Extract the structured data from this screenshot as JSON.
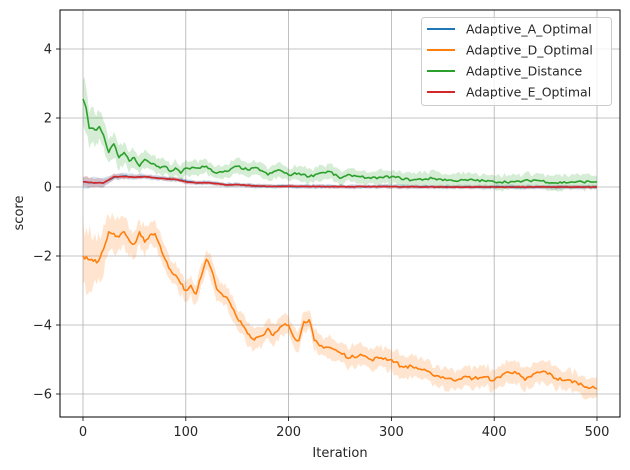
{
  "chart_data": {
    "type": "line",
    "title": "",
    "xlabel": "Iteration",
    "ylabel": "score",
    "xlim": [
      -25,
      525
    ],
    "ylim": [
      -6.65,
      5.1
    ],
    "xticks": [
      0,
      100,
      200,
      300,
      400,
      500
    ],
    "xtick_labels": [
      "0",
      "100",
      "200",
      "300",
      "400",
      "500"
    ],
    "yticks": [
      -6,
      -4,
      -2,
      0,
      2,
      4
    ],
    "ytick_labels": [
      "−6",
      "−4",
      "−2",
      "0",
      "2",
      "4"
    ],
    "grid": true,
    "legend_position": "upper right",
    "legend": [
      "Adaptive_A_Optimal",
      "Adaptive_D_Optimal",
      "Adaptive_Distance",
      "Adaptive_E_Optimal"
    ],
    "series": [
      {
        "name": "Adaptive_A_Optimal",
        "color": "#1f77b4",
        "x": [
          0,
          10,
          20,
          30,
          40,
          50,
          60,
          70,
          80,
          90,
          100,
          110,
          120,
          130,
          140,
          150,
          160,
          170,
          180,
          200,
          250,
          300,
          350,
          400,
          450,
          500
        ],
        "values": [
          0.15,
          0.12,
          0.12,
          0.28,
          0.32,
          0.28,
          0.3,
          0.27,
          0.24,
          0.22,
          0.17,
          0.12,
          0.13,
          0.1,
          0.06,
          0.07,
          0.05,
          0.03,
          0.02,
          0.02,
          0.01,
          0.01,
          0.0,
          0.0,
          0.0,
          0.0
        ],
        "band": 0.06
      },
      {
        "name": "Adaptive_D_Optimal",
        "color": "#ff7f0e",
        "x": [
          0,
          5,
          10,
          15,
          20,
          25,
          30,
          35,
          40,
          45,
          50,
          55,
          60,
          65,
          70,
          75,
          80,
          85,
          90,
          95,
          100,
          105,
          110,
          115,
          120,
          125,
          130,
          135,
          140,
          145,
          150,
          155,
          160,
          165,
          170,
          175,
          180,
          185,
          190,
          195,
          200,
          205,
          210,
          215,
          220,
          225,
          230,
          240,
          250,
          260,
          270,
          280,
          290,
          300,
          310,
          320,
          330,
          340,
          350,
          360,
          370,
          380,
          390,
          400,
          410,
          420,
          430,
          440,
          450,
          460,
          470,
          480,
          490,
          500
        ],
        "values": [
          -2.0,
          -2.1,
          -2.15,
          -2.15,
          -1.8,
          -1.3,
          -1.35,
          -1.45,
          -1.3,
          -1.55,
          -1.65,
          -1.3,
          -1.6,
          -1.4,
          -1.35,
          -1.7,
          -2.1,
          -2.4,
          -2.55,
          -2.8,
          -3.0,
          -2.85,
          -3.1,
          -2.6,
          -2.1,
          -2.4,
          -2.95,
          -3.1,
          -3.2,
          -3.5,
          -3.8,
          -4.0,
          -4.25,
          -4.4,
          -4.35,
          -4.3,
          -4.1,
          -4.3,
          -4.15,
          -4.0,
          -4.0,
          -4.35,
          -4.45,
          -3.9,
          -3.85,
          -4.45,
          -4.6,
          -4.65,
          -4.8,
          -4.95,
          -4.85,
          -5.0,
          -4.95,
          -5.0,
          -5.2,
          -5.2,
          -5.3,
          -5.45,
          -5.5,
          -5.6,
          -5.5,
          -5.55,
          -5.5,
          -5.6,
          -5.4,
          -5.35,
          -5.6,
          -5.4,
          -5.35,
          -5.55,
          -5.6,
          -5.65,
          -5.8,
          -5.85
        ],
        "band": 0.3
      },
      {
        "name": "Adaptive_Distance",
        "color": "#2ca02c",
        "x": [
          0,
          3,
          6,
          10,
          13,
          16,
          20,
          25,
          30,
          35,
          40,
          45,
          50,
          55,
          60,
          65,
          70,
          75,
          80,
          85,
          90,
          95,
          100,
          110,
          120,
          130,
          140,
          150,
          160,
          170,
          180,
          190,
          200,
          210,
          220,
          230,
          240,
          250,
          260,
          270,
          280,
          290,
          300,
          320,
          340,
          360,
          380,
          400,
          420,
          440,
          460,
          480,
          500
        ],
        "values": [
          2.55,
          2.3,
          1.7,
          1.7,
          1.65,
          1.75,
          1.5,
          1.0,
          1.25,
          0.85,
          1.0,
          0.75,
          0.85,
          0.6,
          0.8,
          0.7,
          0.65,
          0.55,
          0.6,
          0.45,
          0.55,
          0.4,
          0.55,
          0.55,
          0.6,
          0.4,
          0.45,
          0.6,
          0.5,
          0.55,
          0.35,
          0.5,
          0.35,
          0.4,
          0.3,
          0.4,
          0.45,
          0.25,
          0.35,
          0.3,
          0.25,
          0.28,
          0.3,
          0.2,
          0.25,
          0.18,
          0.2,
          0.15,
          0.15,
          0.2,
          0.12,
          0.15,
          0.15
        ],
        "band": 0.2
      },
      {
        "name": "Adaptive_E_Optimal",
        "color": "#d62728",
        "x": [
          0,
          10,
          20,
          30,
          40,
          50,
          60,
          70,
          80,
          90,
          100,
          110,
          120,
          130,
          140,
          150,
          160,
          170,
          180,
          200,
          250,
          300,
          350,
          400,
          450,
          500
        ],
        "values": [
          0.15,
          0.12,
          0.12,
          0.3,
          0.3,
          0.28,
          0.3,
          0.26,
          0.24,
          0.22,
          0.15,
          0.12,
          0.12,
          0.1,
          0.06,
          0.07,
          0.05,
          0.03,
          0.02,
          0.02,
          0.01,
          0.01,
          0.0,
          0.0,
          0.0,
          0.0
        ],
        "band": 0.05
      }
    ]
  },
  "labels": {
    "xlabel": "Iteration",
    "ylabel": "score",
    "legend": [
      "Adaptive_A_Optimal",
      "Adaptive_D_Optimal",
      "Adaptive_Distance",
      "Adaptive_E_Optimal"
    ]
  }
}
